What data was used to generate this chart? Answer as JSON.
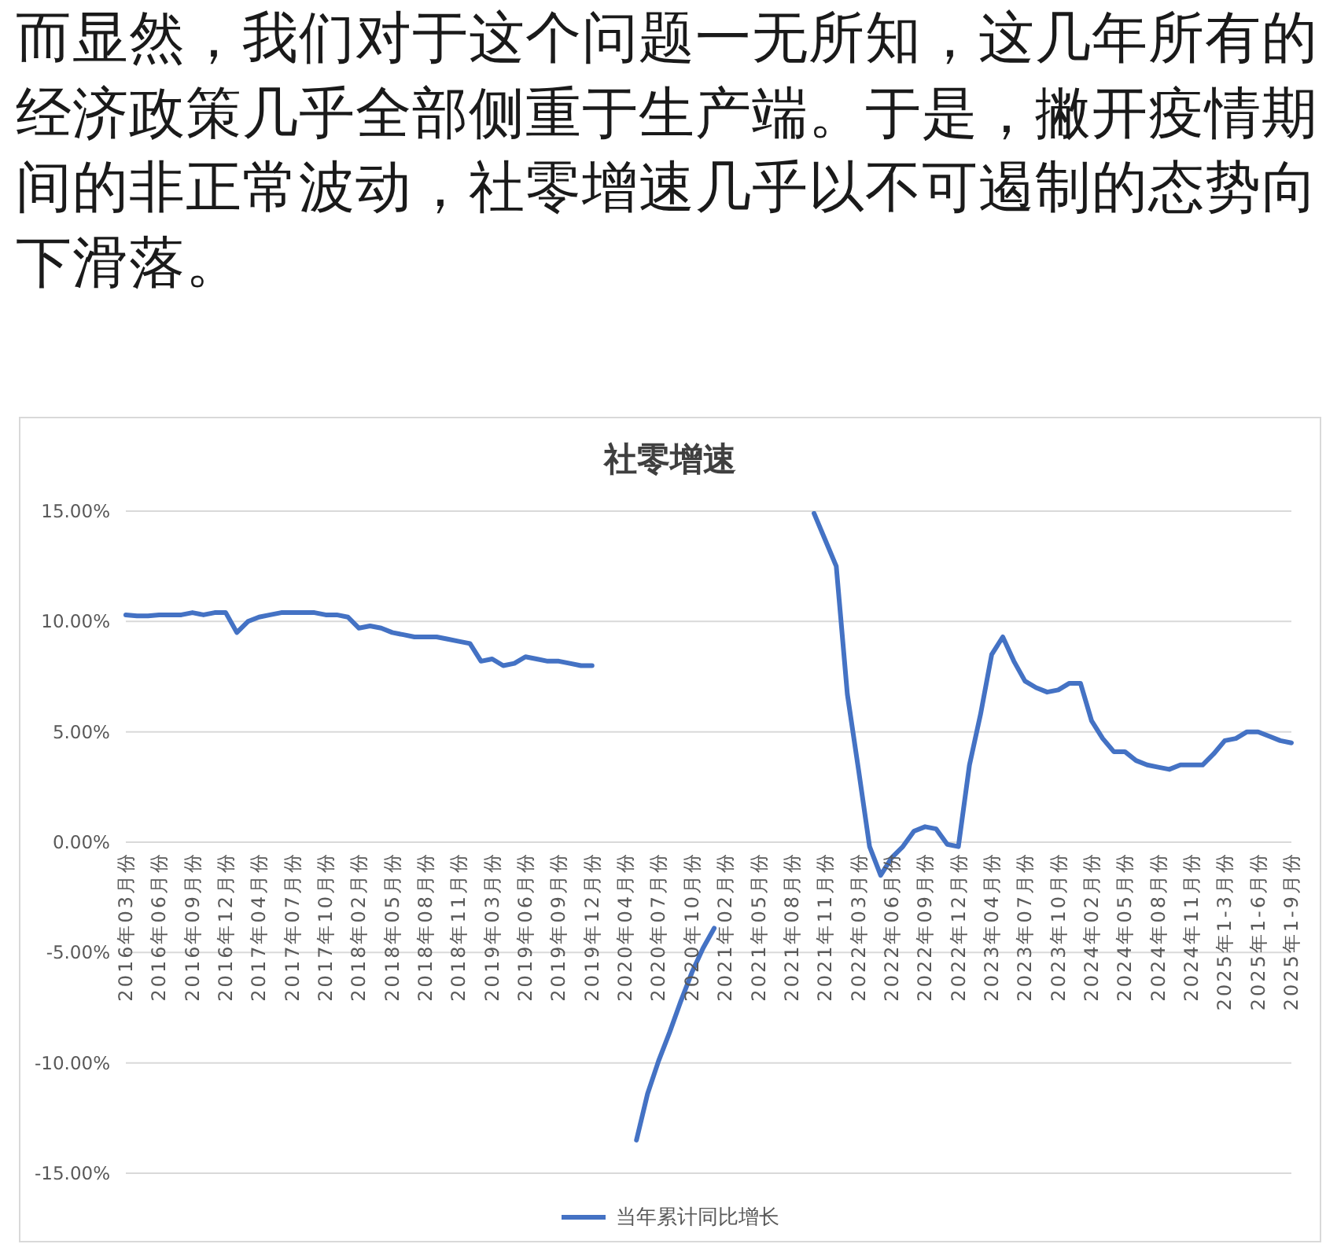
{
  "chart_data": {
    "type": "line",
    "title": "社零增速",
    "annotations": [
      "而显然，我们对于这个问题一无所知，这几年所有的经济政策几乎全部侧重于生产端。于是，撇开疫情期间的非正常波动，社零增速几乎以不可遏制的态势向下滑落。"
    ],
    "categories": [
      "2016年03月份",
      null,
      null,
      "2016年06月份",
      null,
      null,
      "2016年09月份",
      null,
      null,
      "2016年12月份",
      null,
      null,
      "2017年04月份",
      null,
      null,
      "2017年07月份",
      null,
      null,
      "2017年10月份",
      null,
      null,
      "2018年02月份",
      null,
      null,
      "2018年05月份",
      null,
      null,
      "2018年08月份",
      null,
      null,
      "2018年11月份",
      null,
      null,
      "2019年03月份",
      null,
      null,
      "2019年06月份",
      null,
      null,
      "2019年09月份",
      null,
      null,
      "2019年12月份",
      null,
      null,
      "2020年04月份",
      null,
      null,
      "2020年07月份",
      null,
      null,
      "2020年10月份",
      null,
      null,
      "2021年02月份",
      null,
      null,
      "2021年05月份",
      null,
      null,
      "2021年08月份",
      null,
      null,
      "2021年11月份",
      null,
      null,
      "2022年03月份",
      null,
      null,
      "2022年06月份",
      null,
      null,
      "2022年09月份",
      null,
      null,
      "2022年12月份",
      null,
      null,
      "2023年04月份",
      null,
      null,
      "2023年07月份",
      null,
      null,
      "2023年10月份",
      null,
      null,
      "2024年02月份",
      null,
      null,
      "2024年05月份",
      null,
      null,
      "2024年08月份",
      null,
      null,
      "2024年11月份",
      null,
      null,
      "2025年1-3月份",
      null,
      null,
      "2025年1-6月份",
      null,
      null,
      "2025年1-9月份"
    ],
    "series": [
      {
        "name": "当年累计同比增长",
        "color": "#4472c4",
        "values": [
          10.3,
          10.25,
          10.25,
          10.3,
          10.3,
          10.3,
          10.4,
          10.3,
          10.4,
          10.4,
          9.5,
          10.0,
          10.2,
          10.3,
          10.4,
          10.4,
          10.4,
          10.4,
          10.3,
          10.3,
          10.2,
          9.7,
          9.8,
          9.7,
          9.5,
          9.4,
          9.3,
          9.3,
          9.3,
          9.2,
          9.1,
          9.0,
          8.2,
          8.3,
          8.0,
          8.1,
          8.4,
          8.3,
          8.2,
          8.2,
          8.1,
          8.0,
          8.0,
          null,
          null,
          null,
          -13.5,
          -11.4,
          -9.9,
          -8.6,
          -7.2,
          -5.9,
          -4.8,
          -3.9,
          null,
          null,
          null,
          null,
          null,
          null,
          null,
          null,
          14.9,
          13.7,
          12.5,
          6.7,
          3.3,
          -0.2,
          -1.5,
          -0.7,
          -0.2,
          0.5,
          0.7,
          0.6,
          -0.1,
          -0.2,
          3.5,
          5.8,
          8.5,
          9.3,
          8.2,
          7.3,
          7.0,
          6.8,
          6.9,
          7.2,
          7.2,
          5.5,
          4.7,
          4.1,
          4.1,
          3.7,
          3.5,
          3.4,
          3.3,
          3.5,
          3.5,
          3.5,
          4.0,
          4.6,
          4.7,
          5.0,
          5.0,
          4.8,
          4.6,
          4.5
        ]
      }
    ],
    "ylim": [
      -15,
      15
    ],
    "yticks": [
      {
        "value": -15,
        "label": "-15.00%"
      },
      {
        "value": -10,
        "label": "-10.00%"
      },
      {
        "value": -5,
        "label": "-5.00%"
      },
      {
        "value": 0,
        "label": "0.00%"
      },
      {
        "value": 5,
        "label": "5.00%"
      },
      {
        "value": 10,
        "label": "10.00%"
      },
      {
        "value": 15,
        "label": "15.00%"
      }
    ],
    "grid": "y",
    "legend": "bottom"
  }
}
